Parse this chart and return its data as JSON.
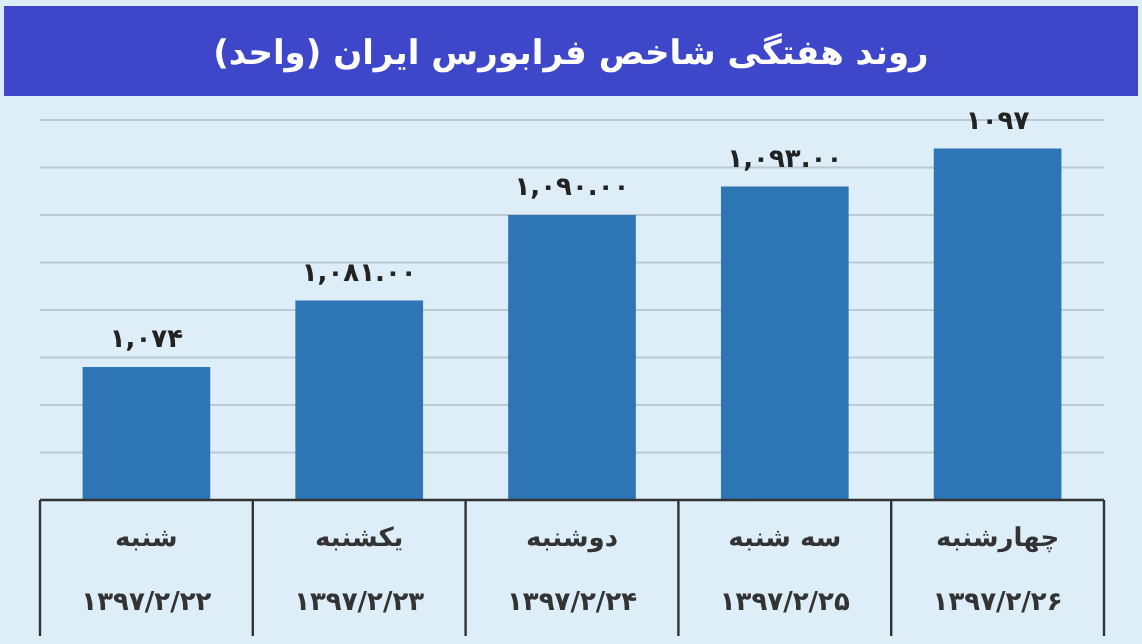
{
  "chart_data": {
    "type": "bar",
    "title": "روند هفتگی شاخص فرابورس ایران (واحد)",
    "categories": [
      "شنبه\n۱۳۹۷/۲/۲۲",
      "یکشنبه\n۱۳۹۷/۲/۲۳",
      "دوشنبه\n۱۳۹۷/۲/۲۴",
      "سه شنبه\n۱۳۹۷/۲/۲۵",
      "چهارشنبه\n۱۳۹۷/۲/۲۶"
    ],
    "values": [
      1074,
      1081,
      1090,
      1093,
      1097
    ],
    "value_labels": [
      "۱,۰۷۴",
      "۱,۰۸۱.۰۰",
      "۱,۰۹۰.۰۰",
      "۱,۰۹۳.۰۰",
      "۱۰۹۷"
    ],
    "color": "#2e75b6",
    "ylim": [
      1060,
      1100
    ],
    "yticks": [
      {
        "value": 1060,
        "label": null
      },
      {
        "value": 1065,
        "label": null
      },
      {
        "value": 1070,
        "label": null
      },
      {
        "value": 1075,
        "label": null
      },
      {
        "value": 1080,
        "label": null
      },
      {
        "value": 1085,
        "label": null
      },
      {
        "value": 1090,
        "label": null
      },
      {
        "value": 1095,
        "label": null
      },
      {
        "value": 1100,
        "label": null
      }
    ],
    "grid": "y",
    "tick_labels": "x"
  }
}
